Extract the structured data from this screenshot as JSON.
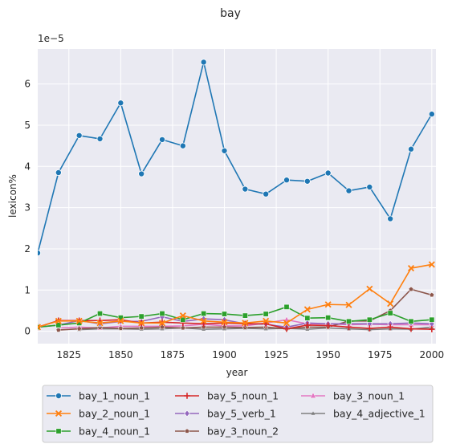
{
  "chart_data": {
    "type": "line",
    "title": "bay",
    "xlabel": "year",
    "ylabel": "lexicon%",
    "y_offset_label": "1e−5",
    "xlim": [
      1810,
      2002
    ],
    "ylim": [
      -0.3,
      6.85
    ],
    "x_ticks": [
      1825,
      1850,
      1875,
      1900,
      1925,
      1950,
      1975,
      2000
    ],
    "x_tick_labels": [
      "1825",
      "1850",
      "1875",
      "1900",
      "1925",
      "1950",
      "1975",
      "2000"
    ],
    "y_ticks": [
      0,
      1,
      2,
      3,
      4,
      5,
      6
    ],
    "y_tick_labels": [
      "0",
      "1",
      "2",
      "3",
      "4",
      "5",
      "6"
    ],
    "grid": true,
    "legend_position": "bottom-center",
    "x": [
      1810,
      1820,
      1830,
      1840,
      1850,
      1860,
      1870,
      1880,
      1890,
      1900,
      1910,
      1920,
      1930,
      1940,
      1950,
      1960,
      1970,
      1980,
      1990,
      2000
    ],
    "series": [
      {
        "name": "bay_1_noun_1",
        "color": "#1f77b4",
        "marker": "circle",
        "values": [
          1.9,
          3.85,
          4.75,
          4.67,
          5.54,
          3.82,
          4.65,
          4.5,
          6.53,
          4.38,
          3.45,
          3.33,
          3.67,
          3.64,
          3.84,
          3.41,
          3.5,
          2.73,
          4.42,
          5.27
        ]
      },
      {
        "name": "bay_2_noun_1",
        "color": "#ff7f0e",
        "marker": "x",
        "values": [
          0.1,
          0.25,
          0.25,
          0.2,
          0.25,
          0.2,
          0.2,
          0.38,
          0.25,
          0.22,
          0.2,
          0.25,
          0.2,
          0.53,
          0.65,
          0.64,
          1.03,
          0.67,
          1.53,
          1.62
        ]
      },
      {
        "name": "bay_4_noun_1",
        "color": "#2ca02c",
        "marker": "square",
        "values": [
          0.1,
          0.15,
          0.2,
          0.43,
          0.33,
          0.36,
          0.43,
          0.28,
          0.43,
          0.42,
          0.38,
          0.42,
          0.59,
          0.32,
          0.33,
          0.24,
          0.28,
          0.44,
          0.24,
          0.28
        ]
      },
      {
        "name": "bay_5_noun_1",
        "color": "#d62728",
        "marker": "plus",
        "values": [
          0.1,
          0.26,
          0.26,
          0.26,
          0.28,
          0.2,
          0.22,
          0.2,
          0.18,
          0.2,
          0.18,
          0.18,
          0.06,
          0.15,
          0.14,
          0.1,
          0.07,
          0.1,
          0.06,
          0.05
        ]
      },
      {
        "name": "bay_5_verb_1",
        "color": "#9467bd",
        "marker": "diamond",
        "values": [
          0.1,
          0.15,
          0.26,
          0.18,
          0.24,
          0.24,
          0.35,
          0.24,
          0.3,
          0.28,
          0.18,
          0.17,
          0.1,
          0.2,
          0.18,
          0.18,
          0.18,
          0.18,
          0.2,
          0.18
        ]
      },
      {
        "name": "bay_3_noun_2",
        "color": "#8c564b",
        "marker": "pentagon",
        "values": [
          null,
          0.03,
          0.06,
          0.09,
          0.07,
          0.08,
          0.1,
          0.08,
          0.1,
          0.1,
          0.09,
          0.1,
          0.06,
          0.1,
          0.1,
          0.25,
          0.25,
          0.5,
          1.02,
          0.88
        ]
      },
      {
        "name": "bay_3_noun_1",
        "color": "#e377c2",
        "marker": "triangle",
        "values": [
          null,
          0.08,
          0.1,
          0.08,
          0.12,
          0.12,
          0.12,
          0.13,
          0.17,
          0.13,
          0.13,
          0.2,
          0.28,
          0.18,
          0.18,
          0.16,
          0.17,
          0.16,
          0.16,
          0.16
        ]
      },
      {
        "name": "bay_4_adjective_1",
        "color": "#7f7f7f",
        "marker": "small-triangle",
        "values": [
          null,
          null,
          0.04,
          0.06,
          0.06,
          0.05,
          0.06,
          0.08,
          0.05,
          0.06,
          0.07,
          0.06,
          0.07,
          0.05,
          0.08,
          0.06,
          0.04,
          0.06,
          0.05,
          0.1
        ]
      }
    ]
  }
}
